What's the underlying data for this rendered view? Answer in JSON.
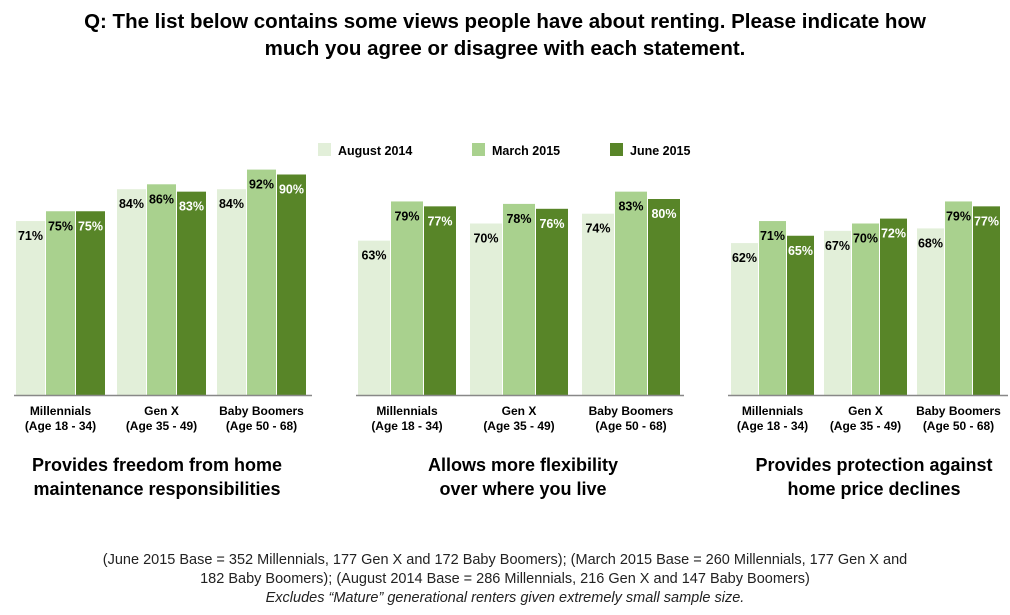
{
  "question_line1": "Q: The list below contains some views people have about renting. Please indicate how",
  "question_line2": "much you agree or disagree with each statement.",
  "legend": [
    "August 2014",
    "March 2015",
    "June 2015"
  ],
  "colors": [
    "#e2efd9",
    "#a9d18e",
    "#588528"
  ],
  "label_colors": [
    "#000000",
    "#000000",
    "#ffffff"
  ],
  "chart_data": [
    {
      "type": "bar",
      "title_lines": [
        "Provides freedom from home",
        "maintenance responsibilities"
      ],
      "categories": [
        [
          "Millennials",
          "(Age 18 - 34)"
        ],
        [
          "Gen X",
          "(Age 35 - 49)"
        ],
        [
          "Baby Boomers",
          "(Age 50 - 68)"
        ]
      ],
      "series": [
        {
          "name": "August 2014",
          "values": [
            71,
            84,
            84
          ]
        },
        {
          "name": "March 2015",
          "values": [
            75,
            86,
            92
          ]
        },
        {
          "name": "June 2015",
          "values": [
            75,
            83,
            90
          ]
        }
      ],
      "ylim": [
        0,
        100
      ],
      "unit": "%"
    },
    {
      "type": "bar",
      "title_lines": [
        "Allows more flexibility",
        "over where you live"
      ],
      "categories": [
        [
          "Millennials",
          "(Age 18 - 34)"
        ],
        [
          "Gen X",
          "(Age 35 - 49)"
        ],
        [
          "Baby Boomers",
          "(Age 50 - 68)"
        ]
      ],
      "series": [
        {
          "name": "August 2014",
          "values": [
            63,
            70,
            74
          ]
        },
        {
          "name": "March 2015",
          "values": [
            79,
            78,
            83
          ]
        },
        {
          "name": "June 2015",
          "values": [
            77,
            76,
            80
          ]
        }
      ],
      "ylim": [
        0,
        100
      ],
      "unit": "%"
    },
    {
      "type": "bar",
      "title_lines": [
        "Provides protection against",
        "home price declines"
      ],
      "categories": [
        [
          "Millennials",
          "(Age 18 - 34)"
        ],
        [
          "Gen X",
          "(Age 35 - 49)"
        ],
        [
          "Baby Boomers",
          "(Age 50 - 68)"
        ]
      ],
      "series": [
        {
          "name": "August 2014",
          "values": [
            62,
            67,
            68
          ]
        },
        {
          "name": "March 2015",
          "values": [
            71,
            70,
            79
          ]
        },
        {
          "name": "June 2015",
          "values": [
            65,
            72,
            77
          ]
        }
      ],
      "ylim": [
        0,
        100
      ],
      "unit": "%"
    }
  ],
  "footnote_line1": "(June 2015 Base = 352 Millennials, 177 Gen X and 172 Baby Boomers);  (March 2015 Base = 260 Millennials, 177 Gen X and",
  "footnote_line2": "182 Baby Boomers); (August 2014 Base = 286 Millennials, 216 Gen X and 147 Baby Boomers)",
  "footnote_line3": "Excludes “Mature” generational renters given extremely small sample size."
}
